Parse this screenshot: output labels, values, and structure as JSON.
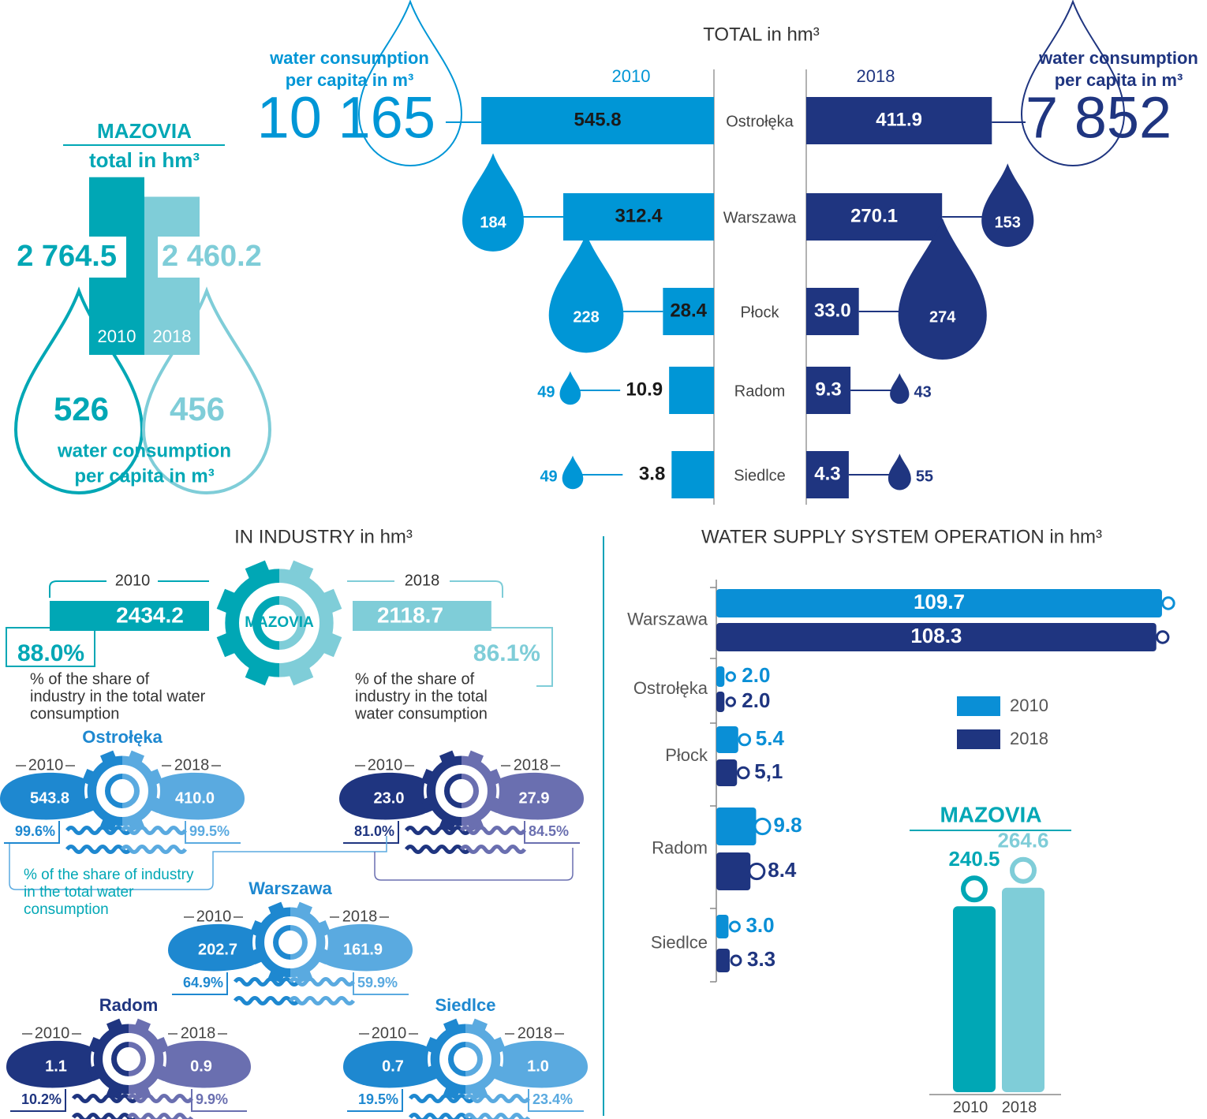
{
  "mazovia_total": {
    "title": "MAZOVIA",
    "subtitle": "total in hm³",
    "years": [
      "2010",
      "2018"
    ],
    "values": [
      2764.5,
      2460.2
    ],
    "value_labels": [
      "2 764.5",
      "2 460.2"
    ],
    "per_capita": [
      526,
      456
    ],
    "per_capita_label": [
      "water consumption",
      "per capita in m³"
    ],
    "colors": [
      "#00a7b5",
      "#7fcdd8"
    ]
  },
  "total": {
    "title": "TOTAL in hm³",
    "per_capita_label": [
      "water consumption",
      "per capita in m³"
    ],
    "cities": [
      "Ostrołęka",
      "Warszawa",
      "Płock",
      "Radom",
      "Siedlce"
    ],
    "series": [
      {
        "name": "2010",
        "color": "#0096d6",
        "values": [
          545.8,
          312.4,
          28.4,
          10.9,
          3.8
        ],
        "per_capita": [
          10165,
          184,
          228,
          49,
          49
        ],
        "per_capita_labels": [
          "10 165",
          "184",
          "228",
          "49",
          "49"
        ]
      },
      {
        "name": "2018",
        "color": "#1f3580",
        "values": [
          411.9,
          270.1,
          33.0,
          9.3,
          4.3
        ],
        "value_labels": [
          "411.9",
          "270.1",
          "33.0",
          "9.3",
          "4.3"
        ],
        "per_capita": [
          7852,
          153,
          274,
          43,
          55
        ],
        "per_capita_labels": [
          "7 852",
          "153",
          "274",
          "43",
          "55"
        ]
      }
    ]
  },
  "industry": {
    "title": "IN INDUSTRY in hm³",
    "years": [
      "2010",
      "2018"
    ],
    "center_label": "MAZOVIA",
    "values": [
      2434.2,
      2118.7
    ],
    "shares": [
      88.0,
      86.1
    ],
    "share_labels": [
      "88.0%",
      "86.1%"
    ],
    "share_notes": [
      [
        "% of the share of",
        "industry in the total water",
        "consumption"
      ],
      [
        "% of the share of",
        "industry in the total",
        "water consumption"
      ]
    ],
    "city_share_note": [
      "% of the share of industry",
      "in the total water",
      "consumption"
    ],
    "colors": [
      "#00a7b5",
      "#7fcdd8"
    ],
    "cities": [
      {
        "name": "Ostrołęka",
        "values": [
          543.8,
          410.0
        ],
        "value_labels": [
          "543.8",
          "410.0"
        ],
        "shares": [
          99.6,
          99.5
        ],
        "share_labels": [
          "99.6%",
          "99.5%"
        ],
        "colors": [
          "#1e88d0",
          "#5aaae0"
        ]
      },
      {
        "name": null,
        "values": [
          23.0,
          27.9
        ],
        "value_labels": [
          "23.0",
          "27.9"
        ],
        "shares": [
          81.0,
          84.5
        ],
        "share_labels": [
          "81.0%",
          "84.5%"
        ],
        "colors": [
          "#1f3580",
          "#6a6fb0"
        ]
      },
      {
        "name": "Warszawa",
        "values": [
          202.7,
          161.9
        ],
        "value_labels": [
          "202.7",
          "161.9"
        ],
        "shares": [
          64.9,
          59.9
        ],
        "share_labels": [
          "64.9%",
          "59.9%"
        ],
        "colors": [
          "#1e88d0",
          "#5aaae0"
        ]
      },
      {
        "name": "Radom",
        "values": [
          1.1,
          0.9
        ],
        "value_labels": [
          "1.1",
          "0.9"
        ],
        "shares": [
          10.2,
          9.9
        ],
        "share_labels": [
          "10.2%",
          "9.9%"
        ],
        "colors": [
          "#1f3580",
          "#6a6fb0"
        ]
      },
      {
        "name": "Siedlce",
        "values": [
          0.7,
          1.0
        ],
        "value_labels": [
          "0.7",
          "1.0"
        ],
        "shares": [
          19.5,
          23.4
        ],
        "share_labels": [
          "19.5%",
          "23.4%"
        ],
        "colors": [
          "#1e88d0",
          "#5aaae0"
        ]
      }
    ]
  },
  "supply": {
    "title": "WATER SUPPLY SYSTEM OPERATION in hm³",
    "cities": [
      "Warszawa",
      "Ostrołęka",
      "Płock",
      "Radom",
      "Siedlce"
    ],
    "series": [
      {
        "name": "2010",
        "color": "#0a8fd6",
        "values": [
          109.7,
          2.0,
          5.4,
          9.8,
          3.0
        ],
        "value_labels": [
          "109.7",
          "2.0",
          "5.4",
          "9.8",
          "3.0"
        ]
      },
      {
        "name": "2018",
        "color": "#1f3580",
        "values": [
          108.3,
          2.0,
          5.1,
          8.4,
          3.3
        ],
        "value_labels": [
          "108.3",
          "2.0",
          "5,1",
          "8.4",
          "3.3"
        ]
      }
    ],
    "mazovia": {
      "title": "MAZOVIA",
      "years": [
        "2010",
        "2018"
      ],
      "values": [
        240.5,
        264.6
      ],
      "colors": [
        "#00a7b5",
        "#7fcdd8"
      ]
    }
  }
}
